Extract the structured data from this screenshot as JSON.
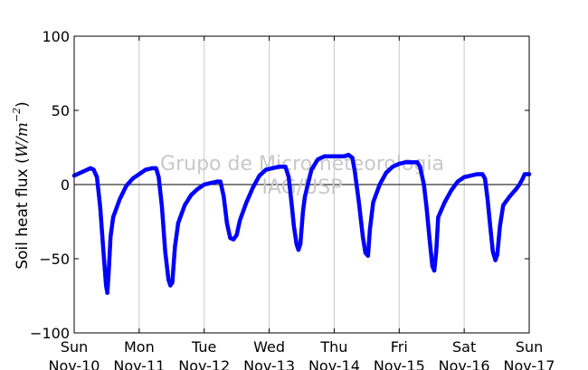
{
  "chart_data": {
    "type": "scatter",
    "ylabel": "Soil heat flux (W/m⁻²)",
    "ylabel_parts": {
      "prefix": "Soil heat flux (",
      "unit": "W/m",
      "exponent": "−2",
      "suffix": ")"
    },
    "ylim": [
      -100,
      100
    ],
    "yticks": [
      {
        "value": 100,
        "label": "100"
      },
      {
        "value": 50,
        "label": "50"
      },
      {
        "value": 0,
        "label": "0"
      },
      {
        "value": -50,
        "label": "−50"
      },
      {
        "value": -100,
        "label": "−100"
      }
    ],
    "x_unit": "days since Sun Nov-10",
    "xlim": [
      0,
      7
    ],
    "xticks": [
      {
        "value": 0,
        "day": "Sun",
        "date": "Nov-10"
      },
      {
        "value": 1,
        "day": "Mon",
        "date": "Nov-11"
      },
      {
        "value": 2,
        "day": "Tue",
        "date": "Nov-12"
      },
      {
        "value": 3,
        "day": "Wed",
        "date": "Nov-13"
      },
      {
        "value": 4,
        "day": "Thu",
        "date": "Nov-14"
      },
      {
        "value": 5,
        "day": "Fri",
        "date": "Nov-15"
      },
      {
        "value": 6,
        "day": "Sat",
        "date": "Nov-16"
      },
      {
        "value": 7,
        "day": "Sun",
        "date": "Nov-17"
      }
    ],
    "grid": "vertical",
    "zero_line": true,
    "series": [
      {
        "color": "#0000ff",
        "points": [
          [
            0.0,
            6
          ],
          [
            0.1,
            8
          ],
          [
            0.2,
            10
          ],
          [
            0.25,
            11
          ],
          [
            0.3,
            10
          ],
          [
            0.35,
            5
          ],
          [
            0.4,
            -15
          ],
          [
            0.45,
            -45
          ],
          [
            0.49,
            -68
          ],
          [
            0.51,
            -73
          ],
          [
            0.53,
            -60
          ],
          [
            0.56,
            -35
          ],
          [
            0.6,
            -22
          ],
          [
            0.7,
            -10
          ],
          [
            0.8,
            -1
          ],
          [
            0.9,
            4
          ],
          [
            1.0,
            7
          ],
          [
            1.1,
            10
          ],
          [
            1.2,
            11
          ],
          [
            1.26,
            11
          ],
          [
            1.3,
            5
          ],
          [
            1.35,
            -15
          ],
          [
            1.4,
            -45
          ],
          [
            1.45,
            -64
          ],
          [
            1.48,
            -68
          ],
          [
            1.51,
            -66
          ],
          [
            1.55,
            -42
          ],
          [
            1.6,
            -26
          ],
          [
            1.7,
            -14
          ],
          [
            1.8,
            -7
          ],
          [
            1.9,
            -3
          ],
          [
            2.0,
            0
          ],
          [
            2.1,
            1
          ],
          [
            2.2,
            2
          ],
          [
            2.25,
            2
          ],
          [
            2.3,
            -8
          ],
          [
            2.35,
            -26
          ],
          [
            2.4,
            -36
          ],
          [
            2.45,
            -37
          ],
          [
            2.5,
            -34
          ],
          [
            2.55,
            -24
          ],
          [
            2.65,
            -12
          ],
          [
            2.75,
            -2
          ],
          [
            2.85,
            6
          ],
          [
            2.95,
            10
          ],
          [
            3.05,
            11
          ],
          [
            3.15,
            12
          ],
          [
            3.25,
            12
          ],
          [
            3.3,
            5
          ],
          [
            3.35,
            -15
          ],
          [
            3.38,
            -28
          ],
          [
            3.42,
            -40
          ],
          [
            3.45,
            -44
          ],
          [
            3.48,
            -40
          ],
          [
            3.52,
            -18
          ],
          [
            3.55,
            -8
          ],
          [
            3.65,
            10
          ],
          [
            3.75,
            17
          ],
          [
            3.85,
            19
          ],
          [
            3.95,
            19
          ],
          [
            4.05,
            19
          ],
          [
            4.15,
            19
          ],
          [
            4.22,
            20
          ],
          [
            4.28,
            18
          ],
          [
            4.32,
            8
          ],
          [
            4.38,
            -12
          ],
          [
            4.44,
            -35
          ],
          [
            4.48,
            -46
          ],
          [
            4.52,
            -48
          ],
          [
            4.55,
            -30
          ],
          [
            4.6,
            -12
          ],
          [
            4.7,
            0
          ],
          [
            4.8,
            8
          ],
          [
            4.9,
            12
          ],
          [
            5.0,
            14
          ],
          [
            5.1,
            15
          ],
          [
            5.2,
            15
          ],
          [
            5.28,
            15
          ],
          [
            5.32,
            12
          ],
          [
            5.38,
            0
          ],
          [
            5.42,
            -15
          ],
          [
            5.47,
            -38
          ],
          [
            5.51,
            -55
          ],
          [
            5.54,
            -58
          ],
          [
            5.57,
            -45
          ],
          [
            5.6,
            -22
          ],
          [
            5.7,
            -12
          ],
          [
            5.8,
            -4
          ],
          [
            5.9,
            2
          ],
          [
            6.0,
            5
          ],
          [
            6.1,
            6
          ],
          [
            6.2,
            7
          ],
          [
            6.28,
            7
          ],
          [
            6.32,
            4
          ],
          [
            6.36,
            -10
          ],
          [
            6.4,
            -28
          ],
          [
            6.44,
            -45
          ],
          [
            6.48,
            -51
          ],
          [
            6.51,
            -47
          ],
          [
            6.55,
            -28
          ],
          [
            6.6,
            -14
          ],
          [
            6.7,
            -8
          ],
          [
            6.8,
            -3
          ],
          [
            6.85,
            0
          ],
          [
            6.9,
            4
          ],
          [
            6.93,
            7
          ],
          [
            6.97,
            7
          ],
          [
            7.0,
            7
          ]
        ]
      }
    ],
    "watermark": [
      "Grupo de Micrometeorologia",
      "IAG/USP"
    ]
  }
}
